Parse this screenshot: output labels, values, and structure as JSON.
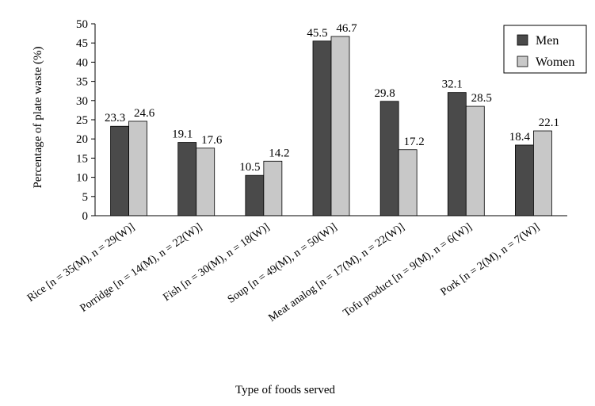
{
  "chart_data": {
    "type": "bar",
    "title": "",
    "xlabel": "Type of foods served",
    "ylabel": "Percentage of plate waste (%)",
    "ylim": [
      0,
      50
    ],
    "yticks": [
      0,
      5,
      10,
      15,
      20,
      25,
      30,
      35,
      40,
      45,
      50
    ],
    "grid": false,
    "legend_position": "top-right",
    "categories": [
      "Rice [n = 35(M), n = 29(W)]",
      "Porridge [n = 14(M), n = 22(W)]",
      "Fish [n = 30(M), n = 18(W)]",
      "Soup [n = 49(M), n = 50(W)]",
      "Meat analog [n = 17(M), n = 22(W)]",
      "Tofu product [n = 9(M), n = 6(W)]",
      "Pork [n = 2(M), n = 7(W)]"
    ],
    "series": [
      {
        "name": "Men",
        "color": "#4a4a4a",
        "values": [
          23.3,
          19.1,
          10.5,
          45.5,
          29.8,
          32.1,
          18.4
        ]
      },
      {
        "name": "Women",
        "color": "#c8c8c8",
        "values": [
          24.6,
          17.6,
          14.2,
          46.7,
          17.2,
          28.5,
          22.1
        ]
      }
    ]
  }
}
